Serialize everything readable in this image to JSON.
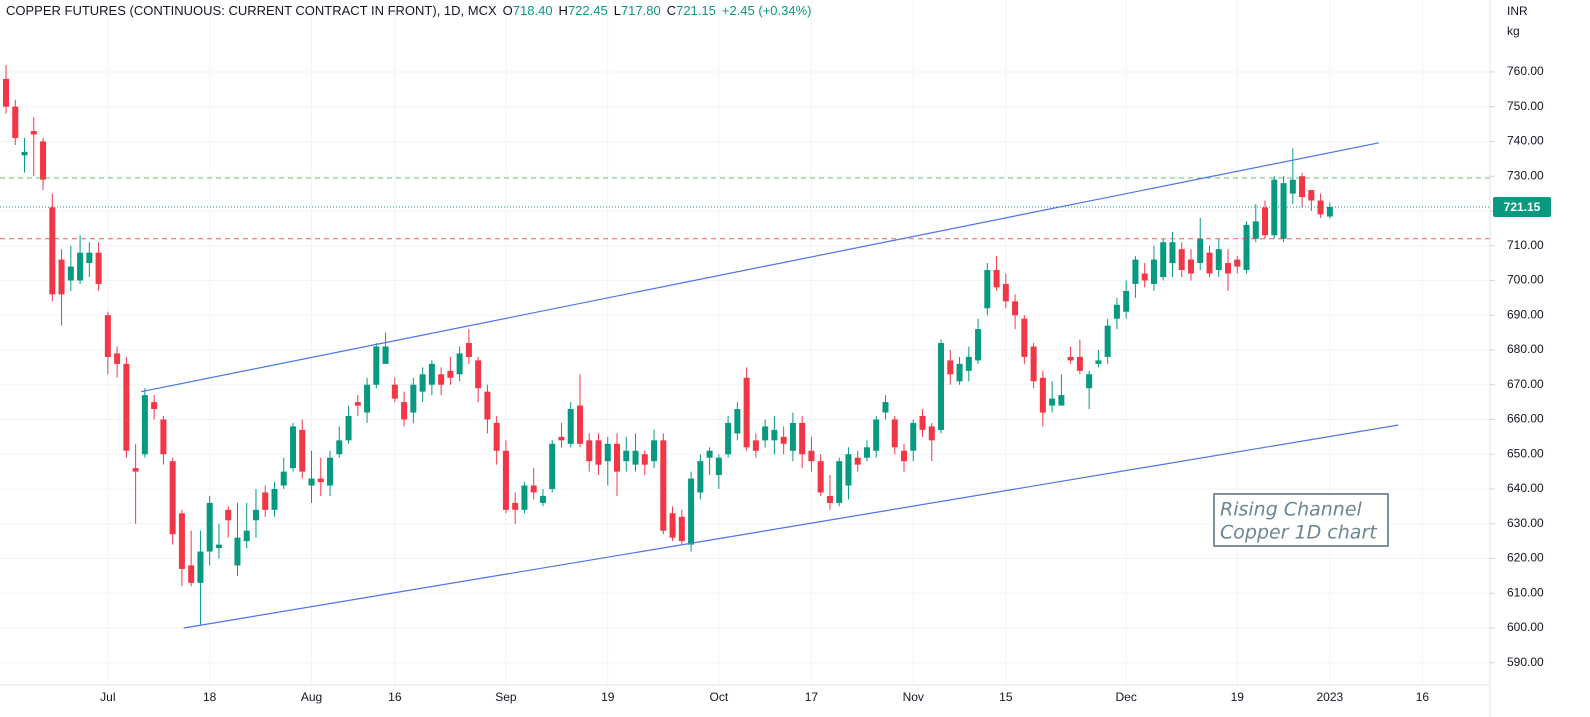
{
  "header": {
    "title": "COPPER FUTURES (CONTINUOUS: CURRENT CONTRACT IN FRONT), 1D, MCX",
    "ohlc": [
      {
        "label": "O",
        "value": "718.40"
      },
      {
        "label": "H",
        "value": "722.45"
      },
      {
        "label": "L",
        "value": "717.80"
      },
      {
        "label": "C",
        "value": "721.15"
      }
    ],
    "change": "+2.45 (+0.34%)",
    "currency": "INR",
    "unit": "kg"
  },
  "chart_data": {
    "type": "candlestick",
    "open": [
      758,
      750,
      736,
      743,
      740,
      721,
      706,
      700,
      700,
      705,
      708,
      690,
      679,
      676,
      646,
      650,
      665,
      660,
      648,
      633,
      618,
      613,
      622,
      623,
      634,
      618,
      625,
      631,
      639,
      634,
      641,
      646,
      657,
      641,
      643,
      641,
      650,
      654,
      665,
      662,
      670,
      676,
      670,
      665,
      662,
      668,
      670,
      673,
      674,
      673,
      682,
      677,
      668,
      659,
      651,
      636,
      634,
      641,
      636,
      640,
      655,
      653,
      664,
      654,
      654,
      648,
      653,
      648,
      647,
      650,
      648,
      654,
      633,
      632,
      624,
      639,
      649,
      644,
      650,
      656,
      672,
      654,
      654,
      654,
      655,
      651,
      659,
      651,
      648,
      638,
      636,
      641,
      649,
      649,
      651,
      662,
      660,
      651,
      651,
      661,
      658,
      657,
      677,
      671,
      674,
      677,
      692,
      703,
      699,
      694,
      689,
      681,
      672,
      664,
      664,
      678,
      678,
      669,
      676,
      678,
      689,
      691,
      699,
      702,
      699,
      701,
      705,
      709,
      706,
      705,
      708,
      703,
      705,
      706,
      703,
      712,
      721,
      713,
      712,
      725,
      730,
      726,
      723,
      718.4
    ],
    "high": [
      762,
      752,
      741,
      747,
      741,
      725,
      709,
      710,
      713,
      711,
      711,
      691,
      681,
      678,
      653,
      669,
      667,
      661,
      649,
      634,
      628,
      628,
      638,
      630,
      635,
      636,
      636,
      640,
      641,
      642,
      649,
      659,
      660,
      651,
      649,
      651,
      658,
      664,
      667,
      672,
      682,
      685,
      672,
      668,
      672,
      675,
      677,
      675,
      678,
      681,
      686,
      678,
      670,
      661,
      654,
      639,
      642,
      646,
      640,
      654,
      659,
      665,
      673,
      656,
      656,
      655,
      656,
      655,
      656,
      651,
      657,
      656,
      635,
      634,
      645,
      650,
      652,
      650,
      661,
      665,
      675,
      656,
      660,
      661,
      658,
      662,
      661,
      655,
      650,
      644,
      649,
      652,
      651,
      654,
      661,
      667,
      661,
      653,
      660,
      663,
      659,
      683,
      680,
      678,
      681,
      689,
      705,
      707,
      702,
      696,
      690,
      682,
      674,
      671,
      673,
      681,
      683,
      674,
      680,
      689,
      695,
      700,
      707,
      705,
      710,
      712,
      714,
      711,
      709,
      718,
      710,
      712,
      709,
      707,
      717,
      722,
      723,
      730,
      730,
      738,
      731,
      726,
      725,
      722.45
    ],
    "low": [
      748,
      739,
      731,
      730,
      726,
      694,
      687,
      697,
      699,
      701,
      697,
      673,
      672,
      649,
      630,
      649,
      660,
      647,
      624,
      612,
      612,
      601,
      618,
      620,
      626,
      615,
      623,
      626,
      632,
      632,
      640,
      645,
      643,
      636,
      638,
      638,
      649,
      653,
      661,
      659,
      669,
      676,
      665,
      658,
      659,
      665,
      667,
      667,
      670,
      671,
      676,
      665,
      656,
      647,
      633,
      630,
      633,
      637,
      635,
      639,
      652,
      652,
      652,
      645,
      644,
      641,
      638,
      645,
      645,
      644,
      646,
      627,
      625,
      624,
      622,
      637,
      644,
      640,
      649,
      654,
      651,
      649,
      652,
      650,
      650,
      648,
      646,
      645,
      638,
      634,
      635,
      637,
      645,
      648,
      649,
      660,
      650,
      645,
      648,
      655,
      648,
      656,
      670,
      670,
      671,
      676,
      690,
      697,
      692,
      686,
      676,
      669,
      658,
      662,
      664,
      676,
      673,
      663,
      675,
      676,
      686,
      689,
      695,
      698,
      697,
      700,
      701,
      701,
      700,
      703,
      701,
      701,
      697,
      702,
      702,
      711,
      712,
      712,
      711,
      722,
      721,
      720,
      718,
      717.8
    ],
    "close": [
      750,
      741,
      737,
      742,
      729,
      696,
      696,
      704,
      708,
      708,
      699,
      678,
      676,
      651,
      645,
      667,
      663,
      650,
      627,
      617,
      613,
      622,
      636,
      624,
      631,
      626,
      628,
      634,
      634,
      640,
      645,
      658,
      645,
      643,
      642,
      649,
      654,
      661,
      664,
      670,
      681,
      681,
      666,
      660,
      670,
      673,
      676,
      670,
      672,
      679,
      678,
      669,
      660,
      651,
      634,
      634,
      641,
      639,
      638,
      653,
      654,
      663,
      653,
      648,
      647,
      653,
      645,
      651,
      651,
      647,
      654,
      628,
      626,
      625,
      643,
      648,
      651,
      649,
      659,
      663,
      652,
      651,
      658,
      657,
      653,
      659,
      650,
      648,
      639,
      636,
      648,
      650,
      647,
      652,
      660,
      665,
      652,
      648,
      659,
      657,
      654,
      682,
      673,
      676,
      678,
      686,
      703,
      698,
      694,
      690,
      678,
      671,
      662,
      666,
      667,
      677,
      674,
      673,
      677,
      687,
      693,
      697,
      706,
      700,
      706,
      711,
      711,
      703,
      702,
      712,
      702,
      709,
      702,
      704,
      716,
      717,
      713,
      729,
      728,
      729,
      724,
      723,
      719,
      721.15
    ],
    "up_color": "#089981",
    "down_color": "#f23645",
    "xlim": [
      -0.65,
      160.3
    ],
    "ylim": [
      583.6,
      780.7
    ],
    "xticks": [
      {
        "value": 11,
        "label": "Jul"
      },
      {
        "value": 22,
        "label": "18"
      },
      {
        "value": 33,
        "label": "Aug"
      },
      {
        "value": 42,
        "label": "16"
      },
      {
        "value": 54,
        "label": "Sep"
      },
      {
        "value": 65,
        "label": "19"
      },
      {
        "value": 77,
        "label": "Oct"
      },
      {
        "value": 87,
        "label": "17"
      },
      {
        "value": 98,
        "label": "Nov"
      },
      {
        "value": 108,
        "label": "15"
      },
      {
        "value": 121,
        "label": "Dec"
      },
      {
        "value": 133,
        "label": "19"
      },
      {
        "value": 143,
        "label": "2023"
      },
      {
        "value": 153,
        "label": "16"
      }
    ],
    "yticks": [
      {
        "value": 590,
        "label": "590.00"
      },
      {
        "value": 600,
        "label": "600.00"
      },
      {
        "value": 610,
        "label": "610.00"
      },
      {
        "value": 620,
        "label": "620.00"
      },
      {
        "value": 630,
        "label": "630.00"
      },
      {
        "value": 640,
        "label": "640.00"
      },
      {
        "value": 650,
        "label": "650.00"
      },
      {
        "value": 660,
        "label": "660.00"
      },
      {
        "value": 670,
        "label": "670.00"
      },
      {
        "value": 680,
        "label": "680.00"
      },
      {
        "value": 690,
        "label": "690.00"
      },
      {
        "value": 700,
        "label": "700.00"
      },
      {
        "value": 710,
        "label": "710.00"
      },
      {
        "value": 720,
        "label": "720.00"
      },
      {
        "value": 730,
        "label": "730.00"
      },
      {
        "value": 740,
        "label": "740.00"
      },
      {
        "value": 750,
        "label": "750.00"
      },
      {
        "value": 760,
        "label": "760.00"
      }
    ],
    "grid": true,
    "trendlines": [
      {
        "color": "#4d74e8",
        "x": [
          14.6,
          148.3
        ],
        "y": [
          668,
          739.6
        ]
      },
      {
        "color": "#4d74e8",
        "x": [
          19.2,
          150.4
        ],
        "y": [
          600,
          658.4
        ]
      }
    ],
    "hlines": [
      {
        "value": 729.5,
        "color": "#4caf50"
      },
      {
        "value": 712,
        "color": "#f23645"
      }
    ],
    "annotation": [
      "Rising Channel",
      "Copper 1D chart"
    ]
  }
}
